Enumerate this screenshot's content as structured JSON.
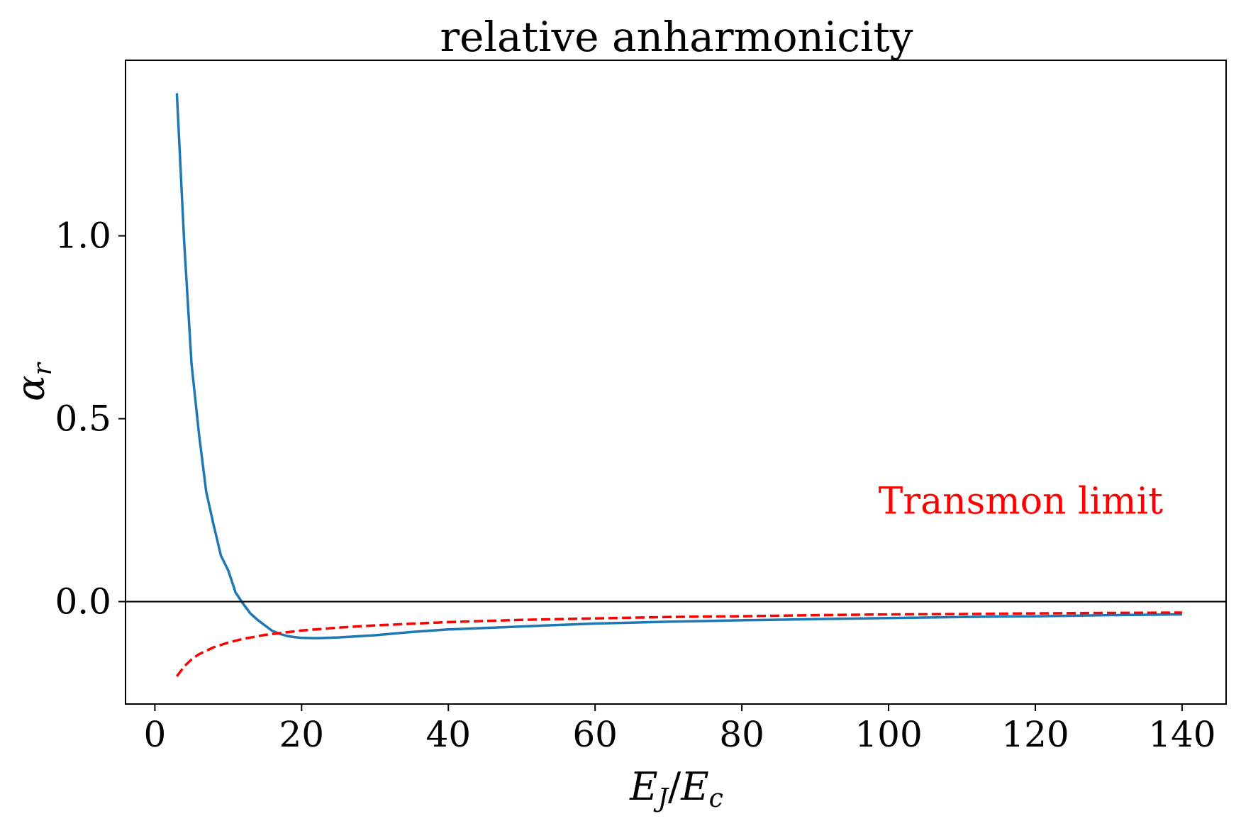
{
  "chart_data": {
    "type": "line",
    "title": "relative anharmonicity",
    "xlabel_parts": {
      "E1": "E",
      "sub1": "J",
      "slash": "/",
      "E2": "E",
      "sub2": "c"
    },
    "ylabel_parts": {
      "alpha": "α",
      "sub": "r"
    },
    "xlim": [
      -4,
      146
    ],
    "ylim": [
      -0.28,
      1.48
    ],
    "xticks": [
      0,
      20,
      40,
      60,
      80,
      100,
      120,
      140
    ],
    "xtick_labels": [
      "0",
      "20",
      "40",
      "60",
      "80",
      "100",
      "120",
      "140"
    ],
    "yticks": [
      0.0,
      0.5,
      1.0
    ],
    "ytick_labels": [
      "0.0",
      "0.5",
      "1.0"
    ],
    "grid": false,
    "hline_y": 0,
    "annotation": {
      "text": "Transmon limit",
      "color": "#ff0000",
      "x": 118,
      "y": 0.24
    },
    "series": [
      {
        "color": "#1f77b4",
        "style": "solid",
        "x": [
          3,
          4,
          5,
          6,
          7,
          8,
          9,
          10,
          11,
          12,
          13,
          14,
          15,
          16,
          17,
          18,
          19,
          20,
          22,
          25,
          30,
          35,
          40,
          50,
          60,
          70,
          80,
          90,
          100,
          110,
          120,
          130,
          140
        ],
        "y": [
          1.39,
          0.98,
          0.65,
          0.46,
          0.3,
          0.21,
          0.126,
          0.085,
          0.025,
          -0.005,
          -0.032,
          -0.05,
          -0.065,
          -0.08,
          -0.088,
          -0.094,
          -0.097,
          -0.099,
          -0.1,
          -0.098,
          -0.092,
          -0.083,
          -0.076,
          -0.068,
          -0.06,
          -0.055,
          -0.051,
          -0.048,
          -0.045,
          -0.042,
          -0.04,
          -0.037,
          -0.035
        ]
      },
      {
        "color": "#ff0000",
        "style": "dashed",
        "x": [
          3,
          4,
          5,
          6,
          8,
          10,
          12,
          15,
          20,
          25,
          30,
          40,
          50,
          60,
          70,
          80,
          90,
          100,
          110,
          120,
          130,
          140
        ],
        "y": [
          -0.204,
          -0.177,
          -0.158,
          -0.144,
          -0.125,
          -0.112,
          -0.102,
          -0.091,
          -0.079,
          -0.071,
          -0.065,
          -0.056,
          -0.05,
          -0.046,
          -0.042,
          -0.04,
          -0.037,
          -0.035,
          -0.034,
          -0.032,
          -0.031,
          -0.03
        ]
      }
    ]
  }
}
